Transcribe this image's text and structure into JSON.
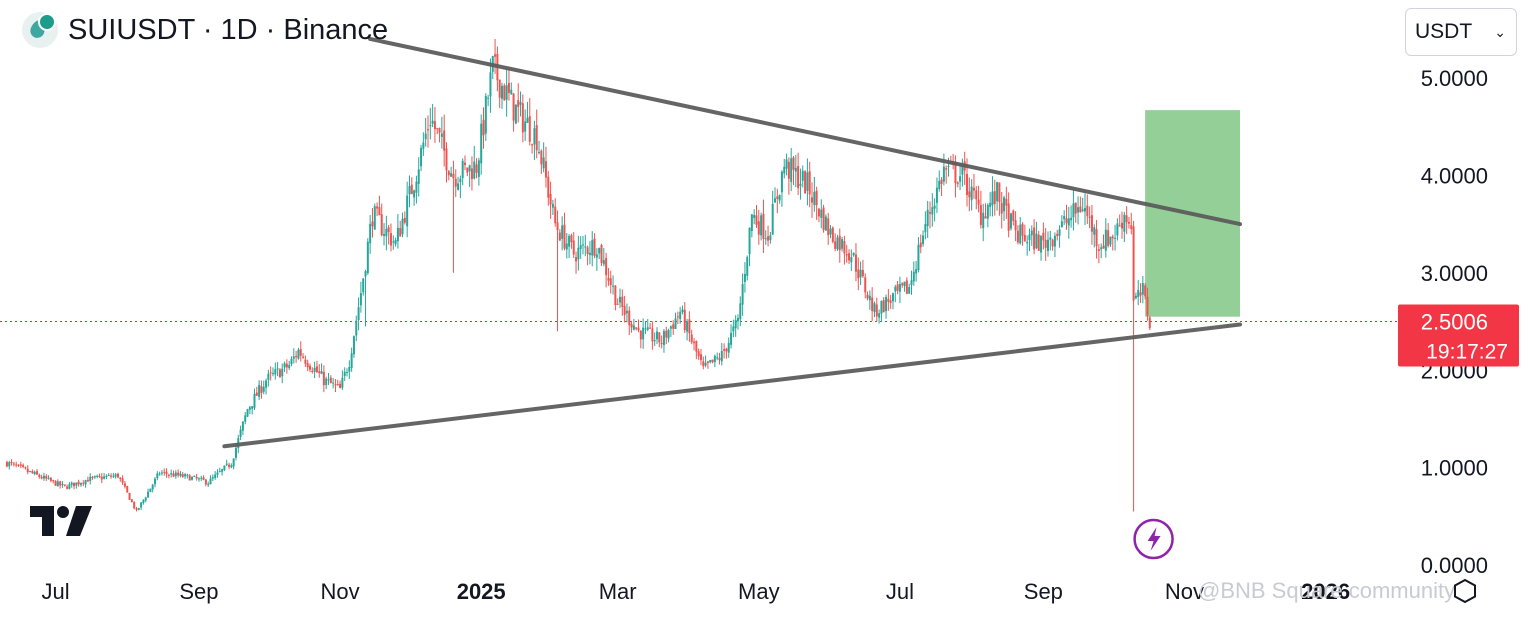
{
  "header": {
    "title": "SUIUSDT · 1D · Binance",
    "symbol_icon": "sui-logo-icon",
    "currency_selector": {
      "value": "USDT",
      "icon": "chevron-down-icon"
    }
  },
  "price_label": {
    "price": "2.5006",
    "countdown": "19:17:27",
    "color": "#f23645"
  },
  "watermark": {
    "text": "@BNB Square community"
  },
  "chart_data": {
    "type": "candlestick",
    "y_axis": {
      "ticks": [
        "0.0000",
        "1.0000",
        "2.0000",
        "3.0000",
        "4.0000",
        "5.0000"
      ],
      "ylim": [
        -0.05,
        5.8
      ]
    },
    "x_axis": {
      "ticks": [
        {
          "label": "Jul",
          "date": "2024-07-01"
        },
        {
          "label": "Sep",
          "date": "2024-09-01"
        },
        {
          "label": "Nov",
          "date": "2024-11-01"
        },
        {
          "label": "2025",
          "date": "2025-01-01",
          "bold": true
        },
        {
          "label": "Mar",
          "date": "2025-03-01"
        },
        {
          "label": "May",
          "date": "2025-05-01"
        },
        {
          "label": "Jul",
          "date": "2025-07-01"
        },
        {
          "label": "Sep",
          "date": "2025-09-01"
        },
        {
          "label": "Nov",
          "date": "2025-11-01"
        },
        {
          "label": "2026",
          "date": "2026-01-01",
          "bold": true
        }
      ],
      "xlim": [
        "2024-06-07",
        "2026-01-31"
      ]
    },
    "series_path": [
      [
        "2024-06-10",
        1.05
      ],
      [
        "2024-06-20",
        0.95
      ],
      [
        "2024-07-05",
        0.8
      ],
      [
        "2024-07-15",
        0.88
      ],
      [
        "2024-07-28",
        0.92
      ],
      [
        "2024-08-05",
        0.55
      ],
      [
        "2024-08-15",
        0.95
      ],
      [
        "2024-08-28",
        0.9
      ],
      [
        "2024-09-05",
        0.85
      ],
      [
        "2024-09-15",
        1.05
      ],
      [
        "2024-09-22",
        1.6
      ],
      [
        "2024-09-30",
        1.9
      ],
      [
        "2024-10-10",
        2.05
      ],
      [
        "2024-10-14",
        2.2
      ],
      [
        "2024-10-25",
        1.9
      ],
      [
        "2024-11-01",
        1.8
      ],
      [
        "2024-11-05",
        2.1
      ],
      [
        "2024-11-10",
        2.8
      ],
      [
        "2024-11-15",
        3.6
      ],
      [
        "2024-11-25",
        3.3
      ],
      [
        "2024-12-03",
        3.95
      ],
      [
        "2024-12-10",
        4.6
      ],
      [
        "2024-12-20",
        4.0
      ],
      [
        "2024-12-30",
        4.1
      ],
      [
        "2025-01-06",
        5.1
      ],
      [
        "2025-01-15",
        4.7
      ],
      [
        "2025-01-25",
        4.4
      ],
      [
        "2025-02-02",
        3.5
      ],
      [
        "2025-02-10",
        3.2
      ],
      [
        "2025-02-20",
        3.3
      ],
      [
        "2025-03-01",
        2.7
      ],
      [
        "2025-03-10",
        2.4
      ],
      [
        "2025-03-20",
        2.3
      ],
      [
        "2025-03-28",
        2.6
      ],
      [
        "2025-04-07",
        2.0
      ],
      [
        "2025-04-15",
        2.15
      ],
      [
        "2025-04-22",
        2.5
      ],
      [
        "2025-04-28",
        3.6
      ],
      [
        "2025-05-05",
        3.4
      ],
      [
        "2025-05-12",
        4.1
      ],
      [
        "2025-05-22",
        3.9
      ],
      [
        "2025-06-01",
        3.4
      ],
      [
        "2025-06-10",
        3.2
      ],
      [
        "2025-06-20",
        2.6
      ],
      [
        "2025-06-28",
        2.75
      ],
      [
        "2025-07-05",
        2.85
      ],
      [
        "2025-07-12",
        3.5
      ],
      [
        "2025-07-20",
        4.05
      ],
      [
        "2025-07-28",
        4.0
      ],
      [
        "2025-08-05",
        3.6
      ],
      [
        "2025-08-12",
        3.8
      ],
      [
        "2025-08-20",
        3.4
      ],
      [
        "2025-09-01",
        3.3
      ],
      [
        "2025-09-10",
        3.5
      ],
      [
        "2025-09-18",
        3.7
      ],
      [
        "2025-09-25",
        3.3
      ],
      [
        "2025-10-02",
        3.4
      ],
      [
        "2025-10-06",
        3.6
      ],
      [
        "2025-10-09",
        3.5
      ],
      [
        "2025-10-10",
        2.7
      ],
      [
        "2025-10-14",
        2.8
      ],
      [
        "2025-10-17",
        2.5
      ]
    ],
    "candle_seed": 7,
    "wick_outliers": [
      {
        "date": "2024-11-12",
        "low": 2.45
      },
      {
        "date": "2024-12-20",
        "low": 3.0
      },
      {
        "date": "2025-02-03",
        "low": 2.4
      },
      {
        "date": "2025-10-10",
        "low": 0.55
      }
    ],
    "trendlines": [
      {
        "name": "upper-trendline",
        "from": [
          "2024-11-14",
          5.4
        ],
        "to": [
          "2025-11-25",
          3.5
        ],
        "color": "#5d5d5d"
      },
      {
        "name": "lower-trendline",
        "from": [
          "2024-09-12",
          1.22
        ],
        "to": [
          "2025-11-25",
          2.47
        ],
        "color": "#5d5d5d"
      }
    ],
    "target_box": {
      "from": [
        "2025-10-15",
        2.55
      ],
      "to": [
        "2025-11-25",
        4.67
      ],
      "color": "#93cf97"
    },
    "current_price_line": {
      "value": 2.5006,
      "color": "#d6343f"
    },
    "event_marker": {
      "date": "2025-10-10",
      "icon": "lightning-bolt-icon",
      "color": "#8e24aa"
    },
    "colors": {
      "up": "#26a69a",
      "down": "#ef5350"
    }
  }
}
